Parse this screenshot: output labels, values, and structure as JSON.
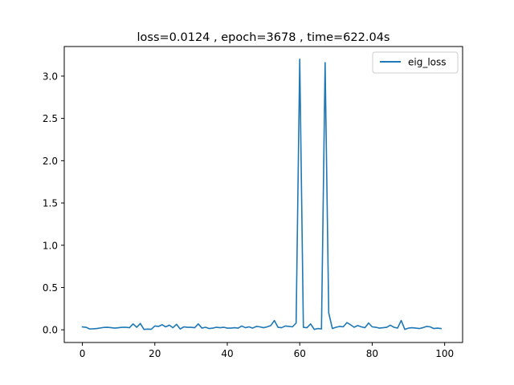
{
  "chart_data": {
    "type": "line",
    "title": "loss=0.0124 , epoch=3678 , time=622.04s",
    "xlabel": "",
    "ylabel": "",
    "xlim": [
      -5,
      104.95
    ],
    "ylim": [
      -0.15,
      3.35
    ],
    "xticks": [
      0,
      20,
      40,
      60,
      80,
      100
    ],
    "yticks": [
      0.0,
      0.5,
      1.0,
      1.5,
      2.0,
      2.5,
      3.0
    ],
    "xtick_labels": [
      "0",
      "20",
      "40",
      "60",
      "80",
      "100"
    ],
    "ytick_labels": [
      "0.0",
      "0.5",
      "1.0",
      "1.5",
      "2.0",
      "2.5",
      "3.0"
    ],
    "grid": false,
    "legend_position": "top-right",
    "series": [
      {
        "name": "eig_loss",
        "color": "#1f77b4",
        "x": [
          0,
          1,
          2,
          3,
          4,
          5,
          6,
          7,
          8,
          9,
          10,
          11,
          12,
          13,
          14,
          15,
          16,
          17,
          18,
          19,
          20,
          21,
          22,
          23,
          24,
          25,
          26,
          27,
          28,
          29,
          30,
          31,
          32,
          33,
          34,
          35,
          36,
          37,
          38,
          39,
          40,
          41,
          42,
          43,
          44,
          45,
          46,
          47,
          48,
          49,
          50,
          51,
          52,
          53,
          54,
          55,
          56,
          57,
          58,
          59,
          60,
          61,
          62,
          63,
          64,
          65,
          66,
          67,
          68,
          69,
          70,
          71,
          72,
          73,
          74,
          75,
          76,
          77,
          78,
          79,
          80,
          81,
          82,
          83,
          84,
          85,
          86,
          87,
          88,
          89,
          90,
          91,
          92,
          93,
          94,
          95,
          96,
          97,
          98,
          99
        ],
        "values": [
          0.035,
          0.03,
          0.01,
          0.012,
          0.015,
          0.022,
          0.028,
          0.03,
          0.025,
          0.02,
          0.025,
          0.03,
          0.03,
          0.025,
          0.07,
          0.03,
          0.075,
          0.005,
          0.008,
          0.006,
          0.045,
          0.04,
          0.06,
          0.035,
          0.055,
          0.025,
          0.065,
          0.01,
          0.035,
          0.03,
          0.03,
          0.025,
          0.07,
          0.02,
          0.03,
          0.015,
          0.02,
          0.03,
          0.025,
          0.03,
          0.02,
          0.02,
          0.025,
          0.02,
          0.045,
          0.025,
          0.035,
          0.02,
          0.04,
          0.035,
          0.025,
          0.035,
          0.05,
          0.11,
          0.03,
          0.025,
          0.045,
          0.04,
          0.035,
          0.08,
          3.2,
          0.03,
          0.025,
          0.07,
          0.005,
          0.015,
          0.01,
          3.16,
          0.2,
          0.015,
          0.03,
          0.04,
          0.035,
          0.085,
          0.06,
          0.03,
          0.05,
          0.035,
          0.025,
          0.08,
          0.035,
          0.03,
          0.02,
          0.025,
          0.03,
          0.055,
          0.03,
          0.02,
          0.11,
          0.005,
          0.02,
          0.025,
          0.02,
          0.015,
          0.025,
          0.04,
          0.035,
          0.015,
          0.02,
          0.015
        ]
      }
    ]
  }
}
